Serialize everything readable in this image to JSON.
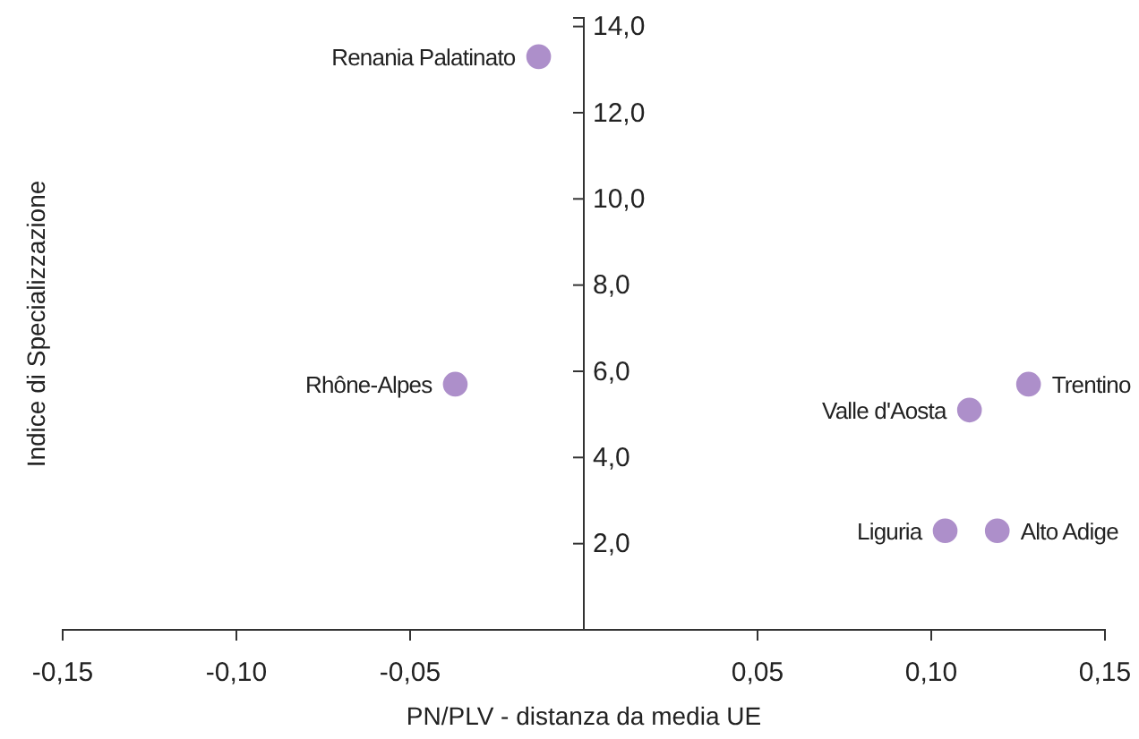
{
  "chart_data": {
    "type": "scatter",
    "xlabel": "PN/PLV - distanza da media UE",
    "ylabel": "Indice di Specializzazione",
    "x": [
      -0.013,
      -0.037,
      0.128,
      0.111,
      0.104,
      0.119
    ],
    "series": [
      {
        "color": "#ad8fca",
        "values": [
          13.3,
          5.7,
          5.7,
          5.1,
          2.3,
          2.3
        ]
      }
    ],
    "marker": "circle",
    "grid": false,
    "xlim": [
      -0.15,
      0.15
    ],
    "ylim": [
      0,
      14.2
    ],
    "xticks": [
      {
        "value": -0.15,
        "label": "-0,15"
      },
      {
        "value": -0.1,
        "label": "-0,10"
      },
      {
        "value": -0.05,
        "label": "-0,05"
      },
      {
        "value": 0.05,
        "label": "0,05"
      },
      {
        "value": 0.1,
        "label": "0,10"
      },
      {
        "value": 0.15,
        "label": "0,15"
      }
    ],
    "yticks": [
      {
        "value": 2,
        "label": "2,0"
      },
      {
        "value": 4,
        "label": "4,0"
      },
      {
        "value": 6,
        "label": "6,0"
      },
      {
        "value": 8,
        "label": "8,0"
      },
      {
        "value": 10,
        "label": "10,0"
      },
      {
        "value": 12,
        "label": "12,0"
      },
      {
        "value": 14,
        "label": "14,0"
      }
    ],
    "annotations": [
      {
        "text": "Renania Palatinato",
        "x": -0.013,
        "y": 13.3
      },
      {
        "text": "Rhône-Alpes",
        "x": -0.037,
        "y": 5.7
      },
      {
        "text": "Trentino",
        "x": 0.128,
        "y": 5.7
      },
      {
        "text": "Valle d'Aosta",
        "x": 0.111,
        "y": 5.1
      },
      {
        "text": "Liguria",
        "x": 0.104,
        "y": 2.3
      },
      {
        "text": "Alto Adige",
        "x": 0.119,
        "y": 2.3
      }
    ]
  }
}
